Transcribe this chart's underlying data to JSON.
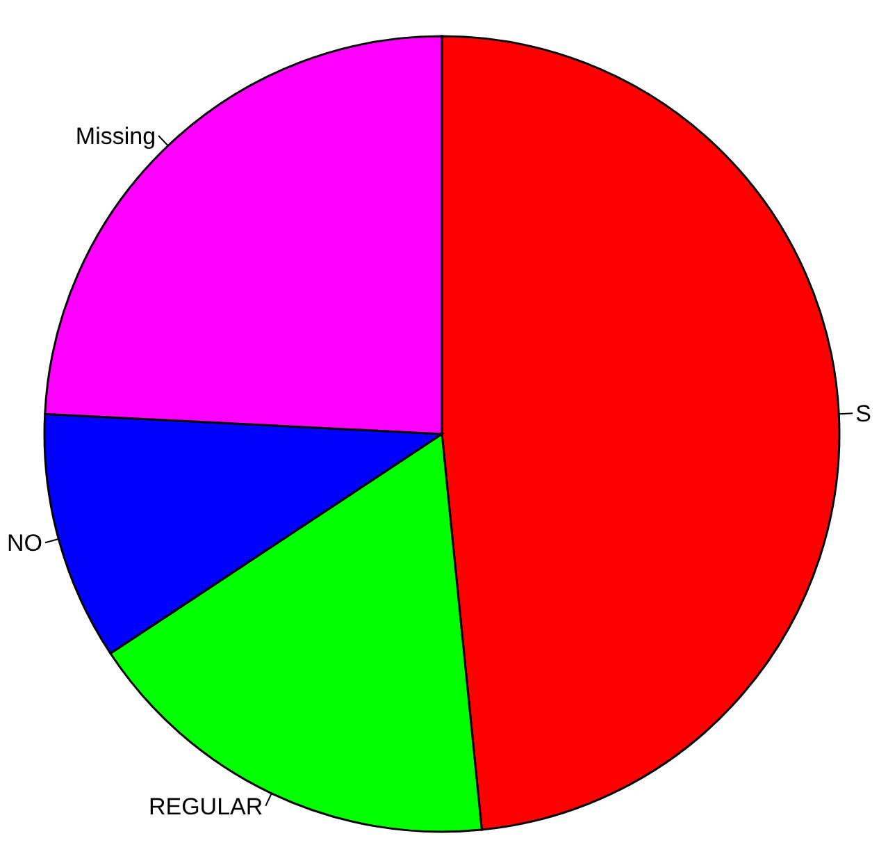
{
  "chart_data": {
    "type": "pie",
    "categories": [
      "S",
      "REGULAR",
      "NO",
      "Missing"
    ],
    "values": [
      48.4,
      17.3,
      10.1,
      24.2
    ],
    "colors": [
      "#ff0000",
      "#00ff00",
      "#0000ff",
      "#ff00ff"
    ]
  }
}
